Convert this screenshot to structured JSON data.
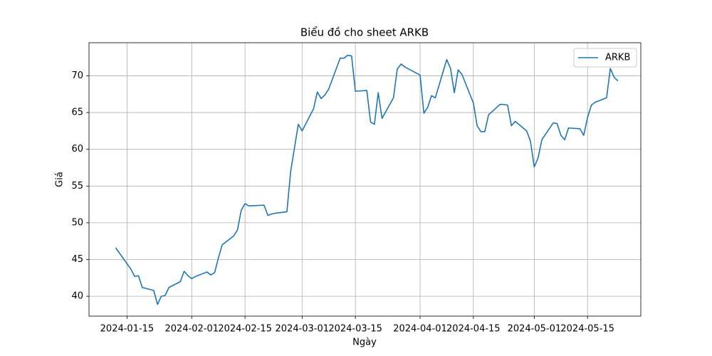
{
  "chart_data": {
    "type": "line",
    "title": "Biểu đồ cho sheet ARKB",
    "x_label": "Ngày",
    "y_label": "Giá",
    "legend": "upper right",
    "grid": true,
    "x": [
      "2024-01-12",
      "2024-01-16",
      "2024-01-17",
      "2024-01-18",
      "2024-01-19",
      "2024-01-22",
      "2024-01-23",
      "2024-01-24",
      "2024-01-25",
      "2024-01-26",
      "2024-01-29",
      "2024-01-30",
      "2024-01-31",
      "2024-02-01",
      "2024-02-02",
      "2024-02-05",
      "2024-02-06",
      "2024-02-07",
      "2024-02-08",
      "2024-02-09",
      "2024-02-12",
      "2024-02-13",
      "2024-02-14",
      "2024-02-15",
      "2024-02-16",
      "2024-02-20",
      "2024-02-21",
      "2024-02-22",
      "2024-02-23",
      "2024-02-26",
      "2024-02-27",
      "2024-02-28",
      "2024-02-29",
      "2024-03-01",
      "2024-03-04",
      "2024-03-05",
      "2024-03-06",
      "2024-03-07",
      "2024-03-08",
      "2024-03-11",
      "2024-03-12",
      "2024-03-13",
      "2024-03-14",
      "2024-03-15",
      "2024-03-18",
      "2024-03-19",
      "2024-03-20",
      "2024-03-21",
      "2024-03-22",
      "2024-03-25",
      "2024-03-26",
      "2024-03-27",
      "2024-03-28",
      "2024-04-01",
      "2024-04-02",
      "2024-04-03",
      "2024-04-04",
      "2024-04-05",
      "2024-04-08",
      "2024-04-09",
      "2024-04-10",
      "2024-04-11",
      "2024-04-12",
      "2024-04-15",
      "2024-04-16",
      "2024-04-17",
      "2024-04-18",
      "2024-04-19",
      "2024-04-22",
      "2024-04-23",
      "2024-04-24",
      "2024-04-25",
      "2024-04-26",
      "2024-04-29",
      "2024-04-30",
      "2024-05-01",
      "2024-05-02",
      "2024-05-03",
      "2024-05-06",
      "2024-05-07",
      "2024-05-08",
      "2024-05-09",
      "2024-05-10",
      "2024-05-13",
      "2024-05-14",
      "2024-05-15",
      "2024-05-16",
      "2024-05-17",
      "2024-05-20",
      "2024-05-21",
      "2024-05-22",
      "2024-05-23"
    ],
    "series": [
      {
        "name": "ARKB",
        "color": "#1f77b4",
        "values": [
          46.6,
          43.7,
          42.7,
          42.8,
          41.2,
          40.8,
          38.9,
          40.0,
          40.1,
          41.2,
          42.0,
          43.4,
          42.8,
          42.4,
          42.7,
          43.3,
          42.9,
          43.2,
          45.2,
          47.0,
          48.2,
          49.0,
          51.7,
          52.6,
          52.3,
          52.4,
          51.0,
          51.2,
          51.3,
          51.5,
          57.0,
          60.2,
          63.4,
          62.5,
          65.5,
          67.8,
          66.9,
          67.4,
          68.2,
          72.4,
          72.4,
          72.8,
          72.7,
          67.9,
          68.0,
          63.7,
          63.4,
          67.7,
          64.2,
          67.0,
          70.9,
          71.6,
          71.2,
          70.1,
          64.9,
          65.7,
          67.3,
          67.0,
          72.2,
          71.0,
          67.7,
          70.8,
          70.2,
          66.3,
          63.2,
          62.4,
          62.4,
          64.7,
          66.1,
          66.1,
          66.0,
          63.2,
          63.8,
          62.5,
          61.1,
          57.6,
          58.8,
          61.3,
          63.6,
          63.5,
          61.9,
          61.3,
          62.9,
          62.8,
          61.9,
          64.3,
          66.0,
          66.4,
          67.0,
          71.0,
          69.8,
          69.3
        ]
      }
    ],
    "xlim": [
      "2024-01-05",
      "2024-05-29"
    ],
    "xticks": [
      "2024-01-15",
      "2024-02-01",
      "2024-02-15",
      "2024-03-01",
      "2024-03-15",
      "2024-04-01",
      "2024-04-15",
      "2024-05-01",
      "2024-05-15"
    ],
    "ylim": [
      37.3,
      74.5
    ],
    "yticks": [
      40,
      45,
      50,
      55,
      60,
      65,
      70
    ]
  }
}
